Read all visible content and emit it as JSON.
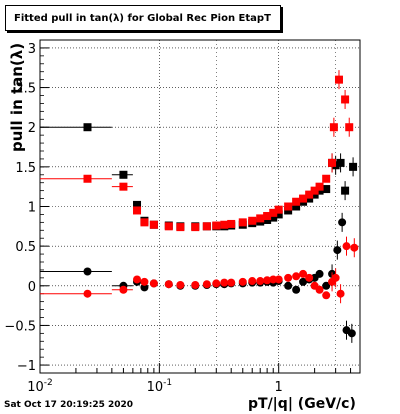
{
  "title": "Fitted pull in tan(λ) for Global Rec Pion EtapT",
  "timestamp": "Sat Oct 17 20:19:25 2020",
  "colors": {
    "black_series": "#000000",
    "red_series": "#ff0000",
    "grid": "#000000"
  },
  "chart_data": {
    "type": "scatter",
    "title": "Fitted pull in tan(λ) for Global Rec Pion EtapT",
    "xlabel": "pT/|q| (GeV/c)",
    "ylabel": "pull in tan(λ)",
    "xscale": "log",
    "xlim": [
      0.01,
      4.8
    ],
    "ylim": [
      -1.1,
      3.1
    ],
    "grid": true,
    "x_ticks": [
      {
        "value": 0.01,
        "label": "10",
        "sup": "-2"
      },
      {
        "value": 0.1,
        "label": "10",
        "sup": "-1"
      },
      {
        "value": 1,
        "label": "1",
        "sup": ""
      }
    ],
    "y_ticks": [
      {
        "value": -1,
        "label": "−1"
      },
      {
        "value": -0.5,
        "label": "−0.5"
      },
      {
        "value": 0,
        "label": "0"
      },
      {
        "value": 0.5,
        "label": "0.5"
      },
      {
        "value": 1,
        "label": "1"
      },
      {
        "value": 1.5,
        "label": "1.5"
      },
      {
        "value": 2,
        "label": "2"
      },
      {
        "value": 2.5,
        "label": "2.5"
      },
      {
        "value": 3,
        "label": "3"
      }
    ],
    "series": [
      {
        "color": "#000000",
        "role": "sigma",
        "points": [
          {
            "x": 0.025,
            "y": 2.0,
            "xlo": 0.01,
            "xhi": 0.04
          },
          {
            "x": 0.05,
            "y": 1.4,
            "xlo": 0.04,
            "xhi": 0.06
          },
          {
            "x": 0.065,
            "y": 1.02
          },
          {
            "x": 0.075,
            "y": 0.82
          },
          {
            "x": 0.09,
            "y": 0.77
          },
          {
            "x": 0.12,
            "y": 0.76
          },
          {
            "x": 0.15,
            "y": 0.75
          },
          {
            "x": 0.2,
            "y": 0.75
          },
          {
            "x": 0.25,
            "y": 0.75
          },
          {
            "x": 0.3,
            "y": 0.75
          },
          {
            "x": 0.35,
            "y": 0.75
          },
          {
            "x": 0.4,
            "y": 0.76
          },
          {
            "x": 0.5,
            "y": 0.77
          },
          {
            "x": 0.6,
            "y": 0.79
          },
          {
            "x": 0.7,
            "y": 0.81
          },
          {
            "x": 0.8,
            "y": 0.83
          },
          {
            "x": 0.9,
            "y": 0.86
          },
          {
            "x": 1.0,
            "y": 0.9
          },
          {
            "x": 1.2,
            "y": 0.95
          },
          {
            "x": 1.4,
            "y": 1.0
          },
          {
            "x": 1.6,
            "y": 1.06
          },
          {
            "x": 1.8,
            "y": 1.1
          },
          {
            "x": 2.0,
            "y": 1.15
          },
          {
            "x": 2.2,
            "y": 1.2
          },
          {
            "x": 2.5,
            "y": 1.22
          },
          {
            "x": 2.8,
            "y": 1.55
          },
          {
            "x": 3.0,
            "y": 1.52
          },
          {
            "x": 3.3,
            "y": 1.55
          },
          {
            "x": 3.6,
            "y": 1.2
          },
          {
            "x": 4.2,
            "y": 1.5
          }
        ]
      },
      {
        "color": "#ff0000",
        "role": "sigma",
        "points": [
          {
            "x": 0.025,
            "y": 1.35,
            "xlo": 0.01,
            "xhi": 0.04
          },
          {
            "x": 0.05,
            "y": 1.25,
            "xlo": 0.04,
            "xhi": 0.06
          },
          {
            "x": 0.065,
            "y": 0.95
          },
          {
            "x": 0.075,
            "y": 0.8
          },
          {
            "x": 0.09,
            "y": 0.77
          },
          {
            "x": 0.12,
            "y": 0.75
          },
          {
            "x": 0.15,
            "y": 0.74
          },
          {
            "x": 0.2,
            "y": 0.74
          },
          {
            "x": 0.25,
            "y": 0.75
          },
          {
            "x": 0.3,
            "y": 0.76
          },
          {
            "x": 0.35,
            "y": 0.77
          },
          {
            "x": 0.4,
            "y": 0.78
          },
          {
            "x": 0.5,
            "y": 0.8
          },
          {
            "x": 0.6,
            "y": 0.82
          },
          {
            "x": 0.7,
            "y": 0.85
          },
          {
            "x": 0.8,
            "y": 0.88
          },
          {
            "x": 0.9,
            "y": 0.92
          },
          {
            "x": 1.0,
            "y": 0.96
          },
          {
            "x": 1.2,
            "y": 1.0
          },
          {
            "x": 1.4,
            "y": 1.06
          },
          {
            "x": 1.6,
            "y": 1.1
          },
          {
            "x": 1.8,
            "y": 1.15
          },
          {
            "x": 2.0,
            "y": 1.2
          },
          {
            "x": 2.2,
            "y": 1.25
          },
          {
            "x": 2.5,
            "y": 1.35
          },
          {
            "x": 2.8,
            "y": 1.55
          },
          {
            "x": 2.9,
            "y": 2.0
          },
          {
            "x": 3.2,
            "y": 2.6
          },
          {
            "x": 3.6,
            "y": 2.35
          },
          {
            "x": 3.9,
            "y": 2.0
          }
        ]
      },
      {
        "color": "#000000",
        "role": "mean",
        "points": [
          {
            "x": 0.025,
            "y": 0.18,
            "xlo": 0.01,
            "xhi": 0.04
          },
          {
            "x": 0.05,
            "y": 0.0,
            "xlo": 0.04,
            "xhi": 0.06
          },
          {
            "x": 0.065,
            "y": 0.05
          },
          {
            "x": 0.075,
            "y": -0.02
          },
          {
            "x": 0.09,
            "y": 0.03
          },
          {
            "x": 0.12,
            "y": 0.02
          },
          {
            "x": 0.15,
            "y": 0.0
          },
          {
            "x": 0.2,
            "y": 0.0
          },
          {
            "x": 0.25,
            "y": 0.01
          },
          {
            "x": 0.3,
            "y": 0.02
          },
          {
            "x": 0.35,
            "y": 0.02
          },
          {
            "x": 0.4,
            "y": 0.03
          },
          {
            "x": 0.5,
            "y": 0.03
          },
          {
            "x": 0.6,
            "y": 0.04
          },
          {
            "x": 0.7,
            "y": 0.04
          },
          {
            "x": 0.8,
            "y": 0.05
          },
          {
            "x": 0.9,
            "y": 0.04
          },
          {
            "x": 1.0,
            "y": 0.06
          },
          {
            "x": 1.2,
            "y": 0.0
          },
          {
            "x": 1.4,
            "y": -0.05
          },
          {
            "x": 1.6,
            "y": 0.05
          },
          {
            "x": 1.8,
            "y": 0.08
          },
          {
            "x": 2.0,
            "y": 0.1
          },
          {
            "x": 2.2,
            "y": 0.15
          },
          {
            "x": 2.5,
            "y": 0.0
          },
          {
            "x": 2.8,
            "y": 0.15
          },
          {
            "x": 3.1,
            "y": 0.45
          },
          {
            "x": 3.4,
            "y": 0.8
          },
          {
            "x": 3.7,
            "y": -0.56
          },
          {
            "x": 4.1,
            "y": -0.6
          }
        ]
      },
      {
        "color": "#ff0000",
        "role": "mean",
        "points": [
          {
            "x": 0.025,
            "y": -0.1,
            "xlo": 0.01,
            "xhi": 0.04
          },
          {
            "x": 0.05,
            "y": -0.05,
            "xlo": 0.04,
            "xhi": 0.06
          },
          {
            "x": 0.065,
            "y": 0.08
          },
          {
            "x": 0.075,
            "y": 0.05
          },
          {
            "x": 0.09,
            "y": 0.03
          },
          {
            "x": 0.12,
            "y": 0.02
          },
          {
            "x": 0.15,
            "y": 0.01
          },
          {
            "x": 0.2,
            "y": 0.01
          },
          {
            "x": 0.25,
            "y": 0.02
          },
          {
            "x": 0.3,
            "y": 0.03
          },
          {
            "x": 0.35,
            "y": 0.04
          },
          {
            "x": 0.4,
            "y": 0.04
          },
          {
            "x": 0.5,
            "y": 0.05
          },
          {
            "x": 0.6,
            "y": 0.06
          },
          {
            "x": 0.7,
            "y": 0.06
          },
          {
            "x": 0.8,
            "y": 0.07
          },
          {
            "x": 0.9,
            "y": 0.08
          },
          {
            "x": 1.0,
            "y": 0.08
          },
          {
            "x": 1.2,
            "y": 0.1
          },
          {
            "x": 1.4,
            "y": 0.12
          },
          {
            "x": 1.6,
            "y": 0.15
          },
          {
            "x": 1.8,
            "y": 0.1
          },
          {
            "x": 2.0,
            "y": 0.0
          },
          {
            "x": 2.2,
            "y": -0.05
          },
          {
            "x": 2.5,
            "y": -0.12
          },
          {
            "x": 2.8,
            "y": 0.05
          },
          {
            "x": 3.0,
            "y": 0.1
          },
          {
            "x": 3.3,
            "y": -0.1
          },
          {
            "x": 3.7,
            "y": 0.5
          },
          {
            "x": 4.3,
            "y": 0.48
          }
        ]
      }
    ]
  }
}
